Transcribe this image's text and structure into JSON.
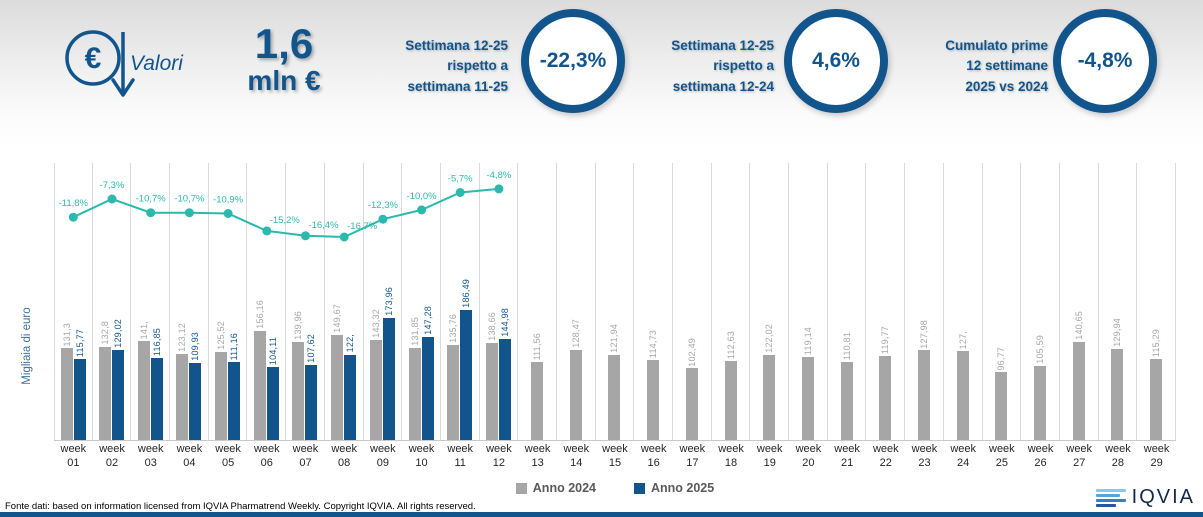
{
  "header": {
    "icon_label": "Valori",
    "metric_value": "1,6",
    "metric_unit": "mln €",
    "kpis": [
      {
        "label_lines": [
          "Settimana 12-25",
          "rispetto a",
          "settimana 11-25"
        ],
        "value": "-22,3%"
      },
      {
        "label_lines": [
          "Settimana 12-25",
          "rispetto a",
          "settimana 12-24"
        ],
        "value": "4,6%"
      },
      {
        "label_lines": [
          "Cumulato prime",
          "12 settimane",
          "2025 vs 2024"
        ],
        "value": "-4,8%"
      }
    ]
  },
  "chart_data": {
    "type": "bar",
    "title": "",
    "ylabel": "Migliaia di euro",
    "x_prefix": "week",
    "categories": [
      "01",
      "02",
      "03",
      "04",
      "05",
      "06",
      "07",
      "08",
      "09",
      "10",
      "11",
      "12",
      "13",
      "14",
      "15",
      "16",
      "17",
      "18",
      "19",
      "20",
      "21",
      "22",
      "23",
      "24",
      "25",
      "26",
      "27",
      "28",
      "29"
    ],
    "grid": "vertical",
    "legend_position": "bottom-center",
    "series": [
      {
        "name": "Anno 2024",
        "color": "#a6a6a6",
        "values": [
          131.3,
          132.8,
          141,
          123.12,
          125.52,
          156.16,
          139.96,
          149.67,
          143.32,
          131.85,
          135.76,
          138.66,
          111.56,
          128.47,
          121.94,
          114.73,
          102.49,
          112.63,
          122.02,
          119.14,
          110.81,
          119.77,
          127.98,
          127,
          96.77,
          105.59,
          140.65,
          129.94,
          115.29
        ],
        "labels": [
          "131,3",
          "132,8",
          "141,",
          "123,12",
          "125,52",
          "156,16",
          "139,96",
          "149,67",
          "143,32",
          "131,85",
          "135,76",
          "138,66",
          "111,56",
          "128,47",
          "121,94",
          "114,73",
          "102,49",
          "112,63",
          "122,02",
          "119,14",
          "110,81",
          "119,77",
          "127,98",
          "127,",
          "96,77",
          "105,59",
          "140,65",
          "129,94",
          "115,29"
        ]
      },
      {
        "name": "Anno 2025",
        "color": "#11558c",
        "values": [
          115.77,
          129.02,
          116.85,
          109.93,
          111.16,
          104.11,
          107.62,
          122,
          173.96,
          147.28,
          186.49,
          144.98
        ],
        "labels": [
          "115,77",
          "129,02",
          "116,85",
          "109,93",
          "111,16",
          "104,11",
          "107,62",
          "122,",
          "173,96",
          "147,28",
          "186,49",
          "144,98"
        ]
      }
    ],
    "line_series": {
      "color": "#2ab9ac",
      "values": [
        -11.8,
        -7.3,
        -10.7,
        -10.7,
        -10.9,
        -15.2,
        -16.4,
        -16.7,
        -12.3,
        -10.0,
        -5.7,
        -4.8
      ],
      "labels": [
        "-11,8%",
        "-7,3%",
        "-10,7%",
        "-10,7%",
        "-10,9%",
        "-15,2%",
        "-16,4%",
        "-16,7%",
        "-12,3%",
        "-10,0%",
        "-5,7%",
        "-4,8%"
      ]
    },
    "legend": [
      {
        "label": "Anno 2024",
        "color": "#a6a6a6"
      },
      {
        "label": "Anno 2025",
        "color": "#11558c"
      }
    ]
  },
  "footer": {
    "source": "Fonte dati: based on information licensed from IQVIA Pharmatrend Weekly. Copyright IQVIA. All rights reserved.",
    "logo_text": "IQVIA"
  },
  "colors": {
    "accent_blue": "#11558c",
    "teal": "#2ab9ac",
    "gray_bar": "#a6a6a6"
  }
}
